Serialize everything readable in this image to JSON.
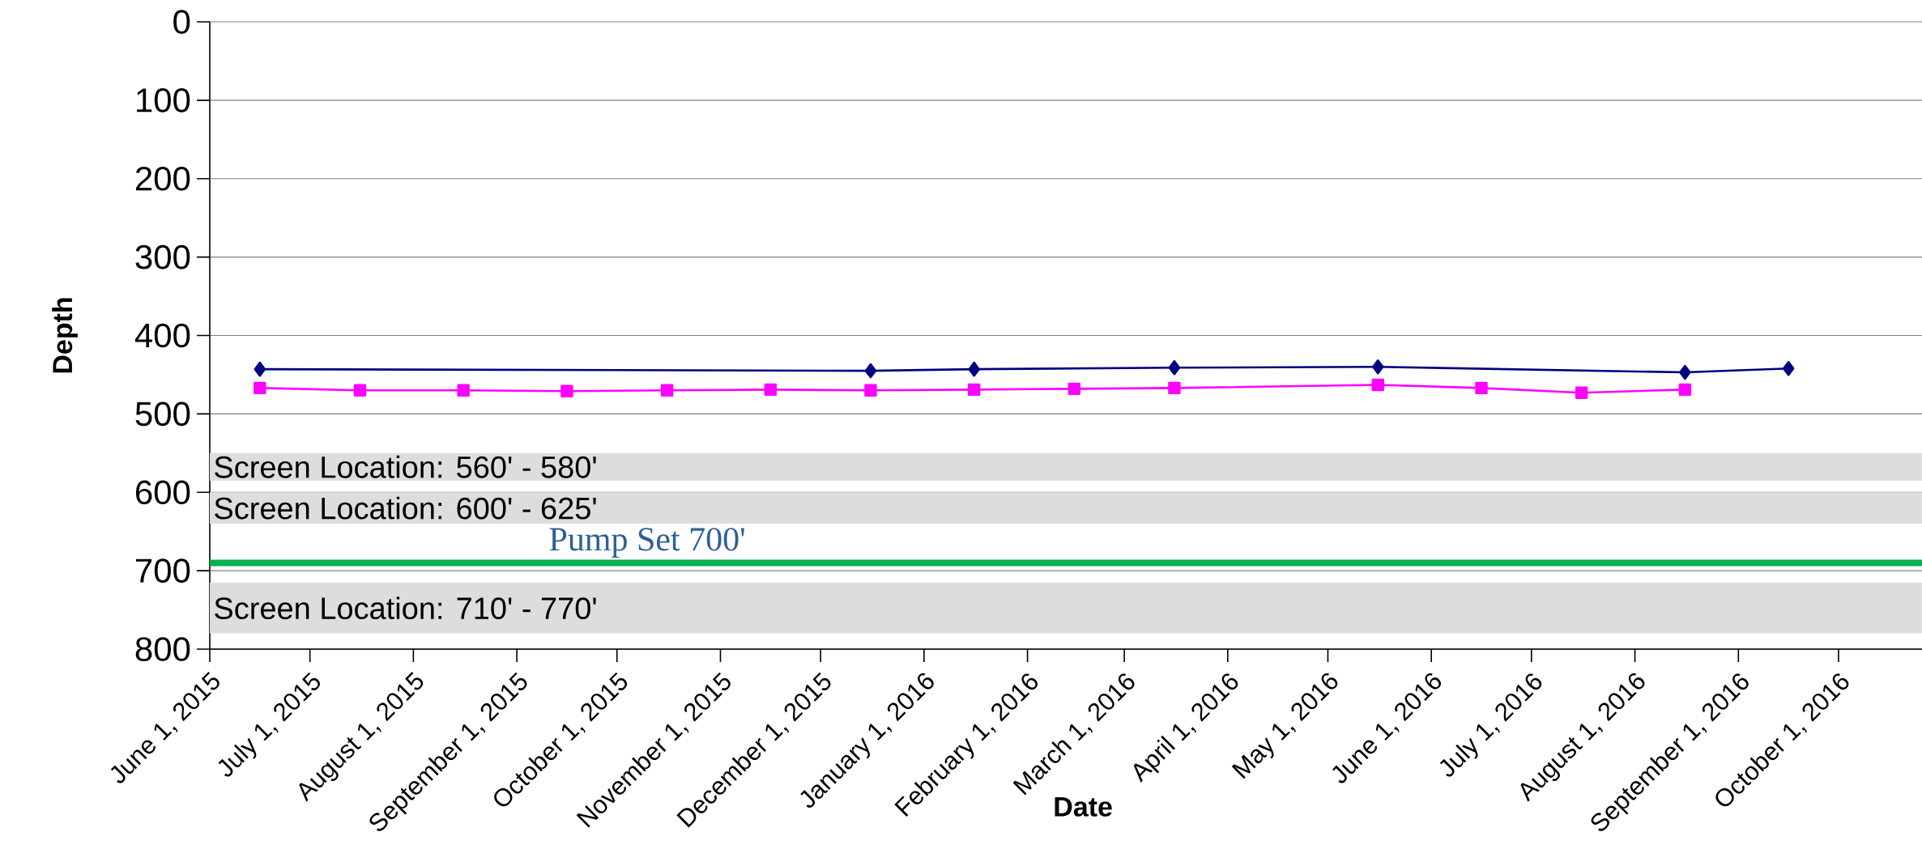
{
  "chart_data": {
    "type": "line",
    "xlabel": "Date",
    "ylabel": "Depth",
    "xlim": [
      "2015-06-01",
      "2016-10-26"
    ],
    "xticks": [
      {
        "value": "2015-06-01",
        "label": "June 1, 2015"
      },
      {
        "value": "2015-07-01",
        "label": "July 1, 2015"
      },
      {
        "value": "2015-08-01",
        "label": "August 1, 2015"
      },
      {
        "value": "2015-09-01",
        "label": "September 1, 2015"
      },
      {
        "value": "2015-10-01",
        "label": "October 1, 2015"
      },
      {
        "value": "2015-11-01",
        "label": "November 1, 2015"
      },
      {
        "value": "2015-12-01",
        "label": "December 1, 2015"
      },
      {
        "value": "2016-01-01",
        "label": "January 1, 2016"
      },
      {
        "value": "2016-02-01",
        "label": "February 1, 2016"
      },
      {
        "value": "2016-03-01",
        "label": "March 1, 2016"
      },
      {
        "value": "2016-04-01",
        "label": "April 1, 2016"
      },
      {
        "value": "2016-05-01",
        "label": "May 1, 2016"
      },
      {
        "value": "2016-06-01",
        "label": "June 1, 2016"
      },
      {
        "value": "2016-07-01",
        "label": "July 1, 2016"
      },
      {
        "value": "2016-08-01",
        "label": "August 1, 2016"
      },
      {
        "value": "2016-09-01",
        "label": "September 1, 2016"
      },
      {
        "value": "2016-10-01",
        "label": "October 1, 2016"
      }
    ],
    "ylim": [
      800,
      0
    ],
    "yticks": [
      0,
      100,
      200,
      300,
      400,
      500,
      600,
      700,
      800
    ],
    "grid": "y",
    "line_style": "solid",
    "series": [
      {
        "color": "#000080",
        "marker": "diamond",
        "x": [
          "2015-06-16",
          "2015-12-16",
          "2016-01-16",
          "2016-03-16",
          "2016-05-16",
          "2016-08-16",
          "2016-09-16"
        ],
        "values": [
          443,
          445,
          443,
          441,
          440,
          447,
          442
        ]
      },
      {
        "color": "#ff00ff",
        "marker": "square",
        "x": [
          "2015-06-16",
          "2015-07-16",
          "2015-08-16",
          "2015-09-16",
          "2015-10-16",
          "2015-11-16",
          "2015-12-16",
          "2016-01-16",
          "2016-02-15",
          "2016-03-16",
          "2016-05-16",
          "2016-06-16",
          "2016-07-16",
          "2016-08-16"
        ],
        "values": [
          467,
          470,
          470,
          471,
          470,
          469,
          470,
          469,
          468,
          467,
          463,
          467,
          473,
          469
        ]
      }
    ],
    "bands": [
      {
        "axis": "y",
        "from": 550,
        "to": 585,
        "label": "Screen Location: 560' - 580'",
        "color": "#dddddd"
      },
      {
        "axis": "y",
        "from": 600,
        "to": 640,
        "label": "Screen Location: 600' - 625'",
        "color": "#dddddd"
      },
      {
        "axis": "y",
        "from": 715,
        "to": 780,
        "label": "Screen Location: 710' - 770'",
        "color": "#dddddd"
      }
    ],
    "ref_lines": [
      {
        "axis": "y",
        "value": 690,
        "label": "Pump Set 700'",
        "color": "#00b050"
      }
    ]
  }
}
